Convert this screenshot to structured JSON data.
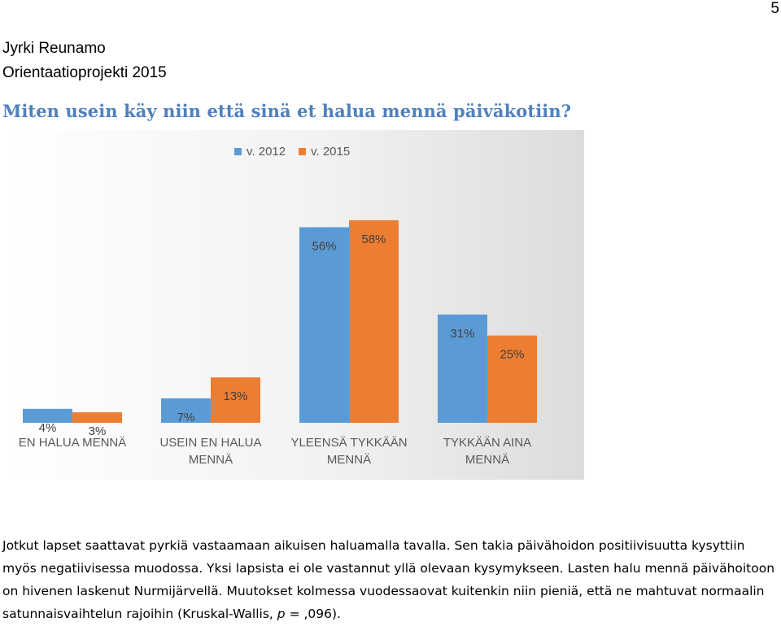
{
  "page": {
    "number": "5"
  },
  "header": {
    "author": "Jyrki Reunamo",
    "project": "Orientaatioprojekti 2015"
  },
  "chart_data": {
    "type": "bar",
    "title": "Miten usein käy niin että sinä et halua mennä päiväkotiin?",
    "categories": [
      "EN HALUA MENNÄ",
      "USEIN EN HALUA MENNÄ",
      "YLEENSÄ TYKKÄÄN MENNÄ",
      "TYKKÄÄN AINA MENNÄ"
    ],
    "category_lines": [
      [
        "EN HALUA MENNÄ"
      ],
      [
        "USEIN EN HALUA",
        "MENNÄ"
      ],
      [
        "YLEENSÄ TYKKÄÄN",
        "MENNÄ"
      ],
      [
        "TYKKÄÄN AINA",
        "MENNÄ"
      ]
    ],
    "series": [
      {
        "name": "v. 2012",
        "values": [
          4,
          7,
          56,
          31
        ],
        "labels": [
          "4%",
          "7%",
          "56%",
          "31%"
        ],
        "color": "#5b9bd5"
      },
      {
        "name": "v. 2015",
        "values": [
          3,
          13,
          58,
          25
        ],
        "labels": [
          "3%",
          "13%",
          "58%",
          "25%"
        ],
        "color": "#ed7d31"
      }
    ],
    "ylim": [
      0,
      70
    ],
    "grid": false,
    "legend": "top-center",
    "xlabel": "",
    "ylabel": ""
  },
  "body": {
    "paragraph_before_italic": "Jotkut lapset saattavat pyrkiä vastaamaan aikuisen haluamalla tavalla. Sen takia päivähoidon positiivisuutta kysyttiin myös negatiivisessa muodossa. Yksi lapsista ei ole vastannut yllä olevaan kysymykseen. Lasten halu mennä päivähoitoon on hivenen laskenut Nurmijärvellä. Muutokset kolmessa vuodessaovat kuitenkin niin pieniä, että ne mahtuvat normaalin satunnaisvaihtelun rajoihin (Kruskal-Wallis, ",
    "italic": "p",
    "paragraph_after_italic": " = ,096)."
  }
}
